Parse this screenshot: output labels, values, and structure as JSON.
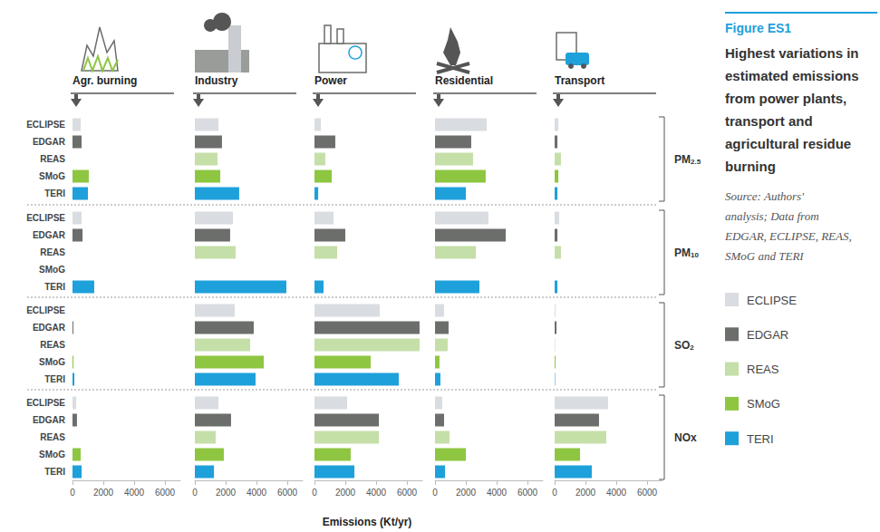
{
  "chart_data": {
    "type": "bar",
    "orientation": "horizontal",
    "figure_label": "Figure ES1",
    "title": "Highest variations in estimated emissions from power plants, transport and agricultural residue burning",
    "source": "Source: Authors' analysis; Data from EDGAR, ECLIPSE, REAS, SMoG and TERI",
    "xlabel": "Emissions (Kt/yr)",
    "columns": [
      "Agr. burning",
      "Industry",
      "Power",
      "Residential",
      "Transport"
    ],
    "categories": [
      "ECLIPSE",
      "EDGAR",
      "REAS",
      "SMoG",
      "TERI"
    ],
    "colors": [
      "#d9dce1",
      "#6b6e6a",
      "#c5dfa8",
      "#8ec641",
      "#1ea0db"
    ],
    "xlim": [
      0,
      7000
    ],
    "xticks": [
      0,
      2000,
      4000,
      6000
    ],
    "grid": false,
    "pollutants": [
      {
        "name": "PM2.5",
        "values": [
          [
            530,
            590,
            null,
            1060,
            1000
          ],
          [
            1530,
            1760,
            1470,
            1650,
            2880
          ],
          [
            410,
            1350,
            700,
            1120,
            240
          ],
          [
            3350,
            2350,
            2470,
            3290,
            2000
          ],
          [
            240,
            180,
            410,
            240,
            180
          ]
        ]
      },
      {
        "name": "PM10",
        "values": [
          [
            590,
            650,
            null,
            null,
            1410
          ],
          [
            2470,
            2290,
            2650,
            null,
            5940
          ],
          [
            1240,
            2000,
            1470,
            null,
            590
          ],
          [
            3470,
            4590,
            2650,
            null,
            2880
          ],
          [
            290,
            180,
            410,
            null,
            180
          ]
        ]
      },
      {
        "name": "SO2",
        "values": [
          [
            null,
            60,
            null,
            60,
            120
          ],
          [
            2590,
            3820,
            3590,
            4470,
            3940
          ],
          [
            4240,
            6820,
            6820,
            3650,
            5470
          ],
          [
            590,
            880,
            820,
            290,
            350
          ],
          [
            60,
            120,
            30,
            60,
            30
          ]
        ]
      },
      {
        "name": "NOx",
        "values": [
          [
            240,
            290,
            null,
            530,
            590
          ],
          [
            1530,
            2350,
            1350,
            1880,
            1240
          ],
          [
            2120,
            4180,
            4180,
            2350,
            2590
          ],
          [
            470,
            590,
            940,
            2000,
            650
          ],
          [
            3470,
            2880,
            3350,
            1650,
            2410
          ]
        ]
      }
    ]
  }
}
